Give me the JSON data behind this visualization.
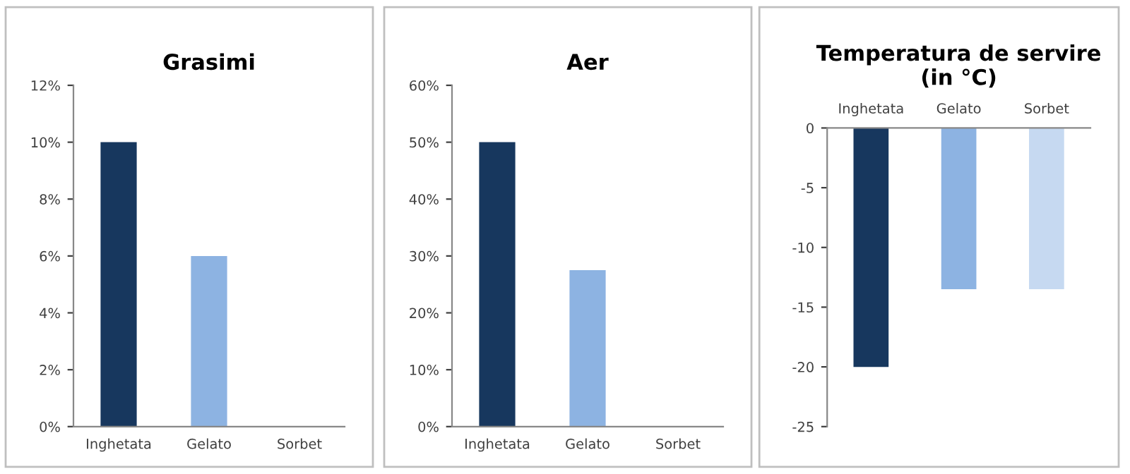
{
  "chart_data": [
    {
      "type": "bar",
      "title": "Grasimi",
      "categories": [
        "Inghetata",
        "Gelato",
        "Sorbet"
      ],
      "values": [
        10,
        6,
        0
      ],
      "colors": [
        "#17375e",
        "#8db3e2",
        "#c6d9f1"
      ],
      "ylim": [
        0,
        12
      ],
      "yticks": [
        {
          "value": 0,
          "label": "0%"
        },
        {
          "value": 2,
          "label": "2%"
        },
        {
          "value": 4,
          "label": "4%"
        },
        {
          "value": 6,
          "label": "6%"
        },
        {
          "value": 8,
          "label": "8%"
        },
        {
          "value": 10,
          "label": "10%"
        },
        {
          "value": 12,
          "label": "12%"
        }
      ],
      "grid": false,
      "legend": false
    },
    {
      "type": "bar",
      "title": "Aer",
      "categories": [
        "Inghetata",
        "Gelato",
        "Sorbet"
      ],
      "values": [
        50,
        27.5,
        0
      ],
      "colors": [
        "#17375e",
        "#8db3e2",
        "#c6d9f1"
      ],
      "ylim": [
        0,
        60
      ],
      "yticks": [
        {
          "value": 0,
          "label": "0%"
        },
        {
          "value": 10,
          "label": "10%"
        },
        {
          "value": 20,
          "label": "20%"
        },
        {
          "value": 30,
          "label": "30%"
        },
        {
          "value": 40,
          "label": "40%"
        },
        {
          "value": 50,
          "label": "50%"
        },
        {
          "value": 60,
          "label": "60%"
        }
      ],
      "grid": false,
      "legend": false
    },
    {
      "type": "bar",
      "title": "Temperatura de servire\n(in °C)",
      "categories": [
        "Inghetata",
        "Gelato",
        "Sorbet"
      ],
      "values": [
        -20,
        -13.5,
        -13.5
      ],
      "colors": [
        "#17375e",
        "#8db3e2",
        "#c6d9f1"
      ],
      "ylim": [
        -25,
        0
      ],
      "yticks": [
        -25,
        -20,
        -15,
        -10,
        -5,
        0
      ],
      "grid": false,
      "legend": false
    }
  ]
}
